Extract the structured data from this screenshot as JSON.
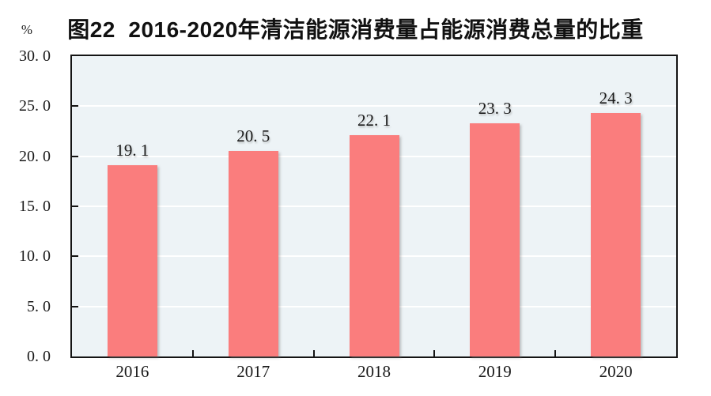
{
  "chart": {
    "title": "图22  2016-2020年清洁能源消费量占能源消费总量的比重",
    "unit_label": "%"
  },
  "colors": {
    "bar": "#FA7D7D",
    "plot_background": "#EDF3F6",
    "gridline": "#FFFFFF",
    "axis": "#141414",
    "text": "#1A1A1A"
  },
  "chart_data": {
    "type": "bar",
    "title": "图22  2016-2020年清洁能源消费量占能源消费总量的比重",
    "categories": [
      "2016",
      "2017",
      "2018",
      "2019",
      "2020"
    ],
    "values": [
      19.1,
      20.5,
      22.1,
      23.3,
      24.3
    ],
    "value_labels": [
      "19. 1",
      "20. 5",
      "22. 1",
      "23. 3",
      "24. 3"
    ],
    "xlabel": "",
    "ylabel": "%",
    "ylim": [
      0,
      30
    ],
    "y_ticks": [
      0,
      5,
      10,
      15,
      20,
      25,
      30
    ],
    "y_tick_labels": [
      "0. 0",
      "5. 0",
      "10. 0",
      "15. 0",
      "20. 0",
      "25. 0",
      "30. 0"
    ],
    "grid": true,
    "legend": "none"
  }
}
